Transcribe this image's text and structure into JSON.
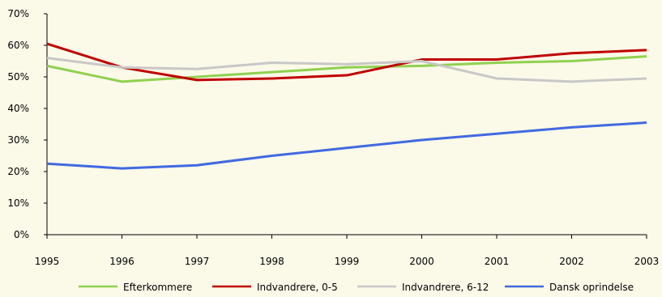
{
  "chart_data": {
    "type": "line",
    "title": "",
    "xlabel": "",
    "ylabel": "",
    "x": [
      "1995",
      "1996",
      "1997",
      "1998",
      "1999",
      "2000",
      "2001",
      "2002",
      "2003"
    ],
    "y_ticks": [
      "0%",
      "10%",
      "20%",
      "30%",
      "40%",
      "50%",
      "60%",
      "70%"
    ],
    "ylim": [
      0,
      70
    ],
    "y_unit": "%",
    "grid": false,
    "legend_position": "bottom",
    "series": [
      {
        "name": "Efterkommere",
        "color": "#8fd14f",
        "values": [
          53.5,
          48.5,
          50,
          51.5,
          53,
          53.5,
          54.5,
          55,
          56.5
        ]
      },
      {
        "name": "Indvandrere, 0-5",
        "color": "#c00000",
        "values": [
          60.5,
          53,
          49,
          49.5,
          50.5,
          55.5,
          55.5,
          57.5,
          58.5
        ]
      },
      {
        "name": "Indvandrere, 6-12",
        "color": "#c8c8c8",
        "values": [
          56,
          53,
          52.5,
          54.5,
          54,
          55,
          49.5,
          48.5,
          49.5
        ]
      },
      {
        "name": "Dansk oprindelse",
        "color": "#4169e1",
        "values": [
          22.5,
          21,
          22,
          25,
          27.5,
          30,
          32,
          34,
          35.5
        ]
      }
    ]
  }
}
